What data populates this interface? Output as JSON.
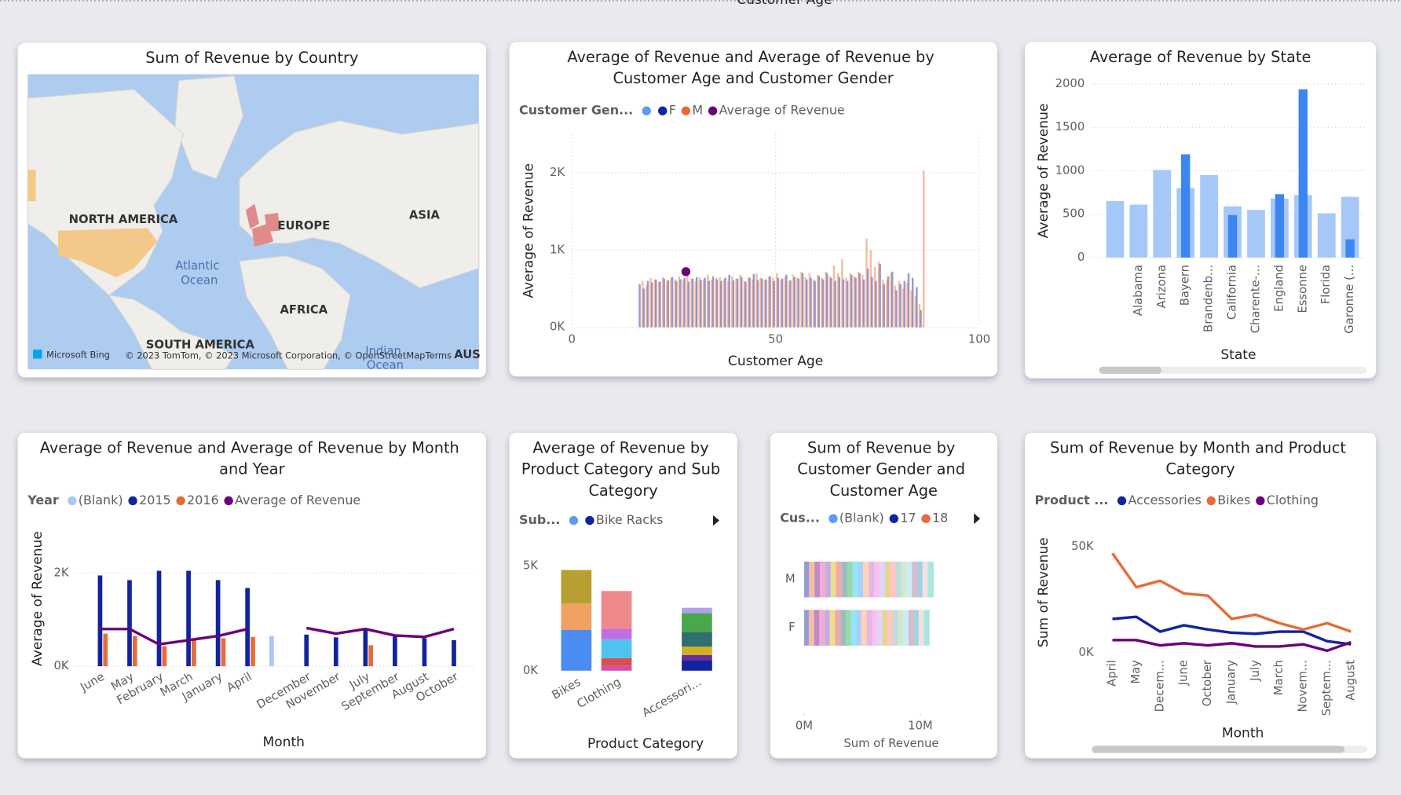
{
  "chart_data": [
    {
      "type": "map",
      "title": "Sum of Revenue by Country",
      "labels": [
        "NORTH AMERICA",
        "EUROPE",
        "ASIA",
        "Atlantic Ocean",
        "AFRICA",
        "SOUTH AMERICA",
        "Indian Ocean",
        "AUS"
      ],
      "brand": "Microsoft Bing",
      "attribution": "© 2023 TomTom, © 2023 Microsoft Corporation, © OpenStreetMap",
      "terms": "Terms"
    },
    {
      "type": "bar",
      "title": "Average of Revenue and Average of Revenue by Customer Age and Customer Gender",
      "legend_title": "Customer Gen...",
      "x": [
        17,
        18,
        19,
        20,
        21,
        22,
        23,
        24,
        25,
        26,
        27,
        28,
        29,
        30,
        31,
        32,
        33,
        34,
        35,
        36,
        37,
        38,
        39,
        40,
        41,
        42,
        43,
        44,
        45,
        46,
        47,
        48,
        49,
        50,
        51,
        52,
        53,
        54,
        55,
        56,
        57,
        58,
        59,
        60,
        61,
        62,
        63,
        64,
        65,
        66,
        67,
        68,
        69,
        70,
        71,
        72,
        73,
        74,
        75,
        76,
        77,
        78,
        79,
        80,
        81,
        82,
        83,
        84,
        85,
        86
      ],
      "xlim": [
        0,
        100
      ],
      "xticks": [
        0,
        50,
        100
      ],
      "ylim": [
        0,
        2500
      ],
      "yticks": [
        {
          "value": 0,
          "label": "0K"
        },
        {
          "value": 1000,
          "label": "1K"
        },
        {
          "value": 2000,
          "label": "2K"
        }
      ],
      "xlabel": "Customer Age",
      "ylabel": "Average of Revenue",
      "grid": true,
      "series": [
        {
          "name": "F",
          "color": "#12239e",
          "values": [
            560,
            500,
            600,
            580,
            620,
            590,
            630,
            610,
            650,
            600,
            620,
            640,
            590,
            630,
            650,
            610,
            640,
            600,
            660,
            620,
            600,
            640,
            680,
            610,
            630,
            650,
            590,
            640,
            690,
            610,
            630,
            620,
            660,
            600,
            640,
            630,
            680,
            610,
            650,
            630,
            700,
            620,
            640,
            600,
            660,
            620,
            700,
            640,
            600,
            650,
            620,
            600,
            680,
            640,
            700,
            620,
            760,
            650,
            600,
            820,
            560,
            660,
            720,
            480,
            560,
            600,
            700,
            640,
            520,
            220
          ]
        },
        {
          "name": "M",
          "color": "#e66c37",
          "values": [
            600,
            540,
            640,
            620,
            590,
            650,
            600,
            640,
            620,
            660,
            610,
            720,
            630,
            600,
            650,
            620,
            680,
            610,
            640,
            650,
            620,
            600,
            660,
            630,
            680,
            600,
            650,
            620,
            700,
            640,
            610,
            660,
            640,
            700,
            620,
            650,
            600,
            680,
            640,
            720,
            650,
            700,
            620,
            680,
            640,
            720,
            660,
            800,
            700,
            880,
            640,
            700,
            660,
            720,
            680,
            1150,
            1000,
            780,
            850,
            620,
            620,
            700,
            540,
            600,
            500,
            580,
            480,
            400,
            300,
            2030
          ]
        },
        {
          "name": "Average of Revenue",
          "color": "#6b007b",
          "type": "line",
          "values": [
            null,
            null,
            null,
            null,
            null,
            null,
            null,
            null,
            null,
            null,
            null,
            720,
            null,
            null,
            null,
            null,
            null,
            null,
            null,
            null,
            null,
            null,
            null,
            null,
            null,
            null,
            null,
            null,
            null,
            null,
            null,
            null,
            null,
            null,
            null,
            null,
            null,
            null,
            null,
            null,
            null,
            null,
            null,
            null,
            null,
            null,
            null,
            null,
            null,
            null,
            null,
            null,
            null,
            null,
            null,
            null,
            null,
            null,
            null,
            null,
            null,
            null,
            null,
            null,
            null,
            null,
            null,
            null,
            null,
            null
          ]
        }
      ]
    },
    {
      "type": "bar",
      "title": "Average of Revenue by State",
      "categories": [
        null,
        "Alabama",
        "Arizona",
        "Bayern",
        "Brandenb...",
        "California",
        "Charente-...",
        "England",
        "Essonne",
        "Florida",
        "Garonne (..."
      ],
      "ylim": [
        0,
        2000
      ],
      "yticks": [
        0,
        500,
        1000,
        1500,
        2000
      ],
      "xlabel": "State",
      "ylabel": "Average of Revenue",
      "grid": true,
      "overlap": true,
      "series": [
        {
          "color": "#a6c8f8",
          "values": [
            650,
            610,
            1010,
            800,
            950,
            590,
            550,
            680,
            720,
            510,
            700
          ]
        },
        {
          "color": "#3b86f2",
          "values": [
            null,
            null,
            null,
            1190,
            null,
            490,
            null,
            730,
            1940,
            null,
            210
          ]
        }
      ]
    },
    {
      "type": "bar",
      "title": "Average of Revenue and Average of Revenue by Month and Year",
      "legend_title": "Year",
      "categories": [
        "June",
        "May",
        "February",
        "March",
        "January",
        "April",
        null,
        "December",
        "November",
        "July",
        "September",
        "August",
        "October"
      ],
      "ylim": [
        0,
        2900
      ],
      "yticks": [
        {
          "value": 0,
          "label": "0K"
        },
        {
          "value": 2000,
          "label": "2K"
        }
      ],
      "xlabel": "Month",
      "ylabel": "Average of Revenue",
      "grid": true,
      "series": [
        {
          "name": "(Blank)",
          "color": "#a8c8f8",
          "values": [
            null,
            null,
            null,
            null,
            null,
            null,
            650,
            null,
            null,
            null,
            null,
            null,
            null
          ]
        },
        {
          "name": "2015",
          "color": "#12239e",
          "values": [
            1950,
            1850,
            2050,
            2050,
            1850,
            1680,
            null,
            680,
            620,
            800,
            640,
            600,
            560
          ]
        },
        {
          "name": "2016",
          "color": "#e66c37",
          "values": [
            700,
            650,
            430,
            560,
            600,
            630,
            null,
            null,
            null,
            450,
            null,
            null,
            null
          ]
        },
        {
          "name": "Average of Revenue",
          "color": "#6b007b",
          "type": "line",
          "values": [
            800,
            800,
            470,
            560,
            650,
            800,
            null,
            820,
            700,
            800,
            660,
            630,
            800
          ]
        }
      ]
    },
    {
      "type": "stacked_bar",
      "title": "Average of Revenue by Product Category and Sub Category",
      "legend_title": "Sub...",
      "categories": [
        "Bikes",
        "Clothing",
        null,
        "Accessori..."
      ],
      "ylim": [
        0,
        5500
      ],
      "yticks": [
        {
          "value": 0,
          "label": "0K"
        },
        {
          "value": 5000,
          "label": "5K"
        }
      ],
      "xlabel": "Product Category",
      "series": [
        {
          "color": "#4a8cf0",
          "values": [
            1950,
            null,
            null,
            null
          ]
        },
        {
          "color": "#f0a060",
          "values": [
            1250,
            null,
            null,
            null
          ]
        },
        {
          "color": "#b8a030",
          "values": [
            1600,
            null,
            null,
            null
          ]
        },
        {
          "color": "#d64fa8",
          "values": [
            null,
            250,
            null,
            null
          ]
        },
        {
          "color": "#d94f4f",
          "values": [
            null,
            350,
            null,
            null
          ]
        },
        {
          "color": "#4fc3f0",
          "values": [
            null,
            900,
            null,
            null
          ]
        },
        {
          "color": "#c26ee0",
          "values": [
            null,
            500,
            null,
            null
          ]
        },
        {
          "color": "#f08a8a",
          "values": [
            null,
            1800,
            null,
            null
          ]
        },
        {
          "name": "Bike Racks",
          "color": "#12239e",
          "values": [
            null,
            null,
            null,
            500
          ]
        },
        {
          "color": "#6a2a9e",
          "values": [
            null,
            null,
            null,
            250
          ]
        },
        {
          "color": "#d0b020",
          "values": [
            null,
            null,
            null,
            400
          ]
        },
        {
          "color": "#2f6f6f",
          "values": [
            null,
            null,
            null,
            700
          ]
        },
        {
          "color": "#4aa84a",
          "values": [
            null,
            null,
            null,
            900
          ]
        },
        {
          "color": "#b0a0f0",
          "values": [
            null,
            null,
            null,
            250
          ]
        }
      ]
    },
    {
      "type": "stacked_barh",
      "title": "Sum of Revenue by Customer Gender and Customer Age",
      "legend_title": "Cus...",
      "categories": [
        "M",
        "F"
      ],
      "xlim": [
        0,
        15000000
      ],
      "xticks": [
        {
          "value": 0,
          "label": "0M"
        },
        {
          "value": 10000000,
          "label": "10M"
        }
      ],
      "xlabel": "Sum of Revenue",
      "series": [
        {
          "name": "(Blank)",
          "color": "#5b9bf5",
          "values": [
            null,
            null
          ]
        },
        {
          "name": "17",
          "color": "#12239e",
          "values": [
            420000,
            400000
          ]
        },
        {
          "name": "18",
          "color": "#e66c37",
          "values": [
            480000,
            460000
          ]
        },
        {
          "color": "#6b007b",
          "values": [
            450000,
            440000
          ]
        },
        {
          "color": "#e044a7",
          "values": [
            500000,
            480000
          ]
        },
        {
          "color": "#744ec2",
          "values": [
            430000,
            420000
          ]
        },
        {
          "color": "#d9b300",
          "values": [
            470000,
            450000
          ]
        },
        {
          "color": "#d64550",
          "values": [
            520000,
            500000
          ]
        },
        {
          "color": "#197278",
          "values": [
            440000,
            430000
          ]
        },
        {
          "color": "#1aab40",
          "values": [
            460000,
            450000
          ]
        },
        {
          "color": "#15c6f4",
          "values": [
            490000,
            470000
          ]
        },
        {
          "color": "#4092ff",
          "values": [
            410000,
            400000
          ]
        },
        {
          "color": "#ffa058",
          "values": [
            500000,
            480000
          ]
        },
        {
          "color": "#be5dc9",
          "values": [
            470000,
            460000
          ]
        },
        {
          "color": "#f472d0",
          "values": [
            450000,
            430000
          ]
        },
        {
          "color": "#b5a1ff",
          "values": [
            480000,
            470000
          ]
        },
        {
          "color": "#c4a200",
          "values": [
            430000,
            420000
          ]
        },
        {
          "color": "#ff8080",
          "values": [
            510000,
            490000
          ]
        },
        {
          "color": "#6fb3b8",
          "values": [
            460000,
            450000
          ]
        },
        {
          "color": "#9bd18b",
          "values": [
            440000,
            430000
          ]
        },
        {
          "color": "#8ad4eb",
          "values": [
            470000,
            450000
          ]
        },
        {
          "color": "#a66999",
          "values": [
            490000,
            470000
          ]
        },
        {
          "color": "#3599b8",
          "values": [
            420000,
            410000
          ]
        },
        {
          "color": "#dfbfbf",
          "values": [
            450000,
            440000
          ]
        },
        {
          "color": "#4ac5bb",
          "values": [
            520000,
            500000
          ]
        }
      ]
    },
    {
      "type": "line",
      "title": "Sum of Revenue by Month and Product Category",
      "legend_title": "Product ...",
      "categories": [
        "April",
        "May",
        "Decem...",
        "June",
        "October",
        "January",
        "July",
        "March",
        "Novem...",
        "Septem...",
        "August"
      ],
      "ylim": [
        0,
        57000
      ],
      "yticks": [
        {
          "value": 0,
          "label": "0K"
        },
        {
          "value": 50000,
          "label": "50K"
        }
      ],
      "xlabel": "Month",
      "ylabel": "Sum of Revenue",
      "series": [
        {
          "name": "Accessories",
          "color": "#12239e",
          "values": [
            16000,
            17000,
            10000,
            13000,
            11000,
            9500,
            9000,
            10000,
            10000,
            5500,
            4000
          ]
        },
        {
          "name": "Bikes",
          "color": "#e66c37",
          "values": [
            47000,
            31000,
            34000,
            28000,
            27000,
            16000,
            18000,
            14000,
            11000,
            14000,
            10000
          ]
        },
        {
          "name": "Clothing",
          "color": "#6b007b",
          "values": [
            6000,
            6000,
            3500,
            4500,
            3500,
            4500,
            3000,
            3000,
            4000,
            1000,
            5000
          ]
        }
      ]
    }
  ]
}
